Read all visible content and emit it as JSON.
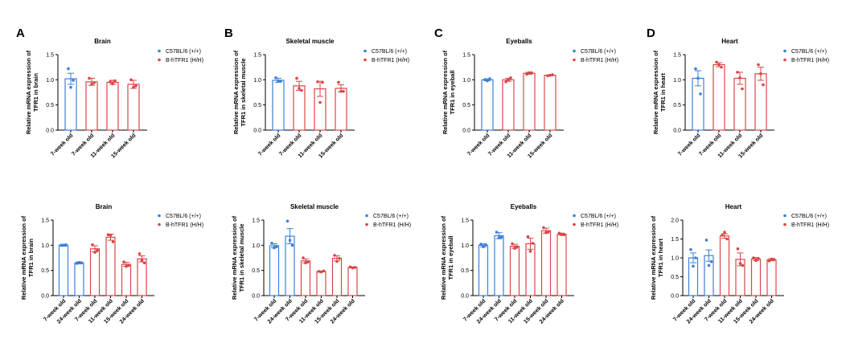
{
  "colors": {
    "wild_type": "#3d7fd9",
    "humanized": "#d94646"
  },
  "legend": [
    "C57BL/6 (+/+)",
    "B-hTFR1 (H/H)"
  ],
  "chart_data": [
    {
      "panel": "A",
      "type": "bar",
      "title": "Brain",
      "ylabel": [
        "Relative mRNA expression of",
        "TFR1 in brain"
      ],
      "ylim": [
        0,
        1.5
      ],
      "yticks": [
        "0.0",
        "0.5",
        "1.0",
        "1.5"
      ],
      "categories": [
        "7-week old",
        "7-week old",
        "11-week old",
        "15-week old"
      ],
      "groups": [
        "wt",
        "h",
        "h",
        "h"
      ],
      "values": [
        1.02,
        0.96,
        0.95,
        0.91
      ],
      "errors": [
        0.11,
        0.07,
        0.04,
        0.08
      ],
      "points": [
        [
          1.22,
          0.85,
          0.99
        ],
        [
          1.03,
          0.91,
          0.94
        ],
        [
          0.96,
          0.92,
          0.98
        ],
        [
          1.0,
          0.85,
          0.88
        ]
      ]
    },
    {
      "panel": "B",
      "type": "bar",
      "title": "Skeletal muscle",
      "ylabel": [
        "Relative mRNA expression of",
        "TFR1 in skeletal muscle"
      ],
      "ylim": [
        0,
        1.5
      ],
      "yticks": [
        "0.0",
        "0.5",
        "1.0",
        "1.5"
      ],
      "categories": [
        "7-week old",
        "7-week old",
        "11-week old",
        "15-week old"
      ],
      "groups": [
        "wt",
        "h",
        "h",
        "h"
      ],
      "values": [
        0.99,
        0.88,
        0.82,
        0.83
      ],
      "errors": [
        0.04,
        0.09,
        0.15,
        0.07
      ],
      "points": [
        [
          1.04,
          0.97,
          0.97
        ],
        [
          1.03,
          0.83,
          0.79
        ],
        [
          0.96,
          0.55,
          0.95
        ],
        [
          0.95,
          0.77,
          0.77
        ]
      ]
    },
    {
      "panel": "C",
      "type": "bar",
      "title": "Eyeballs",
      "ylabel": [
        "Relative mRNA expression of",
        "TFR1 in eyeball"
      ],
      "ylim": [
        0,
        1.5
      ],
      "yticks": [
        "0.0",
        "0.5",
        "1.0",
        "1.5"
      ],
      "categories": [
        "7-week old",
        "7-week old",
        "11-week old",
        "15-week old"
      ],
      "groups": [
        "wt",
        "h",
        "h",
        "h"
      ],
      "values": [
        1.0,
        1.0,
        1.13,
        1.09
      ],
      "errors": [
        0.02,
        0.03,
        0.02,
        0.01
      ],
      "points": [
        [
          1.0,
          0.98,
          1.02
        ],
        [
          0.96,
          1.0,
          1.04
        ],
        [
          1.11,
          1.14,
          1.14
        ],
        [
          1.08,
          1.09,
          1.1
        ]
      ]
    },
    {
      "panel": "D",
      "type": "bar",
      "title": "Heart",
      "ylabel": [
        "Relative mRNA expression of",
        "TFR1 in heart"
      ],
      "ylim": [
        0,
        1.5
      ],
      "yticks": [
        "0.0",
        "0.5",
        "1.0",
        "1.5"
      ],
      "categories": [
        "7-week old",
        "7-week old",
        "11-week old",
        "15-week old"
      ],
      "groups": [
        "wt",
        "h",
        "h",
        "h"
      ],
      "values": [
        1.03,
        1.3,
        1.03,
        1.12
      ],
      "errors": [
        0.15,
        0.04,
        0.12,
        0.13
      ],
      "points": [
        [
          1.22,
          1.03,
          0.72
        ],
        [
          1.35,
          1.3,
          1.25
        ],
        [
          1.15,
          1.04,
          0.82
        ],
        [
          1.3,
          1.12,
          0.9
        ]
      ]
    },
    {
      "panel": "",
      "type": "bar",
      "title": "Brain",
      "ylabel": [
        "Relative mRNA expression of",
        "TFR1 in brain"
      ],
      "ylim": [
        0,
        1.5
      ],
      "yticks": [
        "0.0",
        "0.5",
        "1.0",
        "1.5"
      ],
      "categories": [
        "7-week old",
        "24-week old",
        "7-week old",
        "11-week old",
        "15-week old",
        "24-week old"
      ],
      "groups": [
        "wt",
        "wt",
        "h",
        "h",
        "h",
        "h"
      ],
      "values": [
        1.0,
        0.65,
        0.93,
        1.16,
        0.62,
        0.73
      ],
      "errors": [
        0.02,
        0.02,
        0.06,
        0.06,
        0.04,
        0.06
      ],
      "points": [
        [
          1.0,
          1.0,
          1.01
        ],
        [
          0.64,
          0.66,
          0.65
        ],
        [
          1.01,
          0.86,
          0.9
        ],
        [
          1.21,
          1.2,
          1.07
        ],
        [
          0.67,
          0.58,
          0.6
        ],
        [
          0.83,
          0.7,
          0.65
        ]
      ]
    },
    {
      "panel": "",
      "type": "bar",
      "title": "Skeletal muscle",
      "ylabel": [
        "Relative mRNA expression of",
        "TFR1 in skeletal muscle"
      ],
      "ylim": [
        0,
        1.5
      ],
      "yticks": [
        "0.0",
        "0.5",
        "1.0",
        "1.5"
      ],
      "categories": [
        "7-week old",
        "24-week old",
        "7-week old",
        "11-week old",
        "15-week old",
        "24-week old"
      ],
      "groups": [
        "wt",
        "wt",
        "h",
        "h",
        "h",
        "h"
      ],
      "values": [
        0.99,
        1.18,
        0.69,
        0.48,
        0.74,
        0.56
      ],
      "errors": [
        0.04,
        0.15,
        0.04,
        0.01,
        0.05,
        0.01
      ],
      "points": [
        [
          1.04,
          0.95,
          0.98
        ],
        [
          1.48,
          1.1,
          1.0
        ],
        [
          0.75,
          0.65,
          0.67
        ],
        [
          0.48,
          0.47,
          0.49
        ],
        [
          0.8,
          0.68,
          0.74
        ],
        [
          0.57,
          0.55,
          0.56
        ]
      ]
    },
    {
      "panel": "",
      "type": "bar",
      "title": "Eyeballs",
      "ylabel": [
        "Relative mRNA expression of",
        "TFR1 in eyeball"
      ],
      "ylim": [
        0,
        1.5
      ],
      "yticks": [
        "0.0",
        "0.5",
        "1.0",
        "1.5"
      ],
      "categories": [
        "7-week old",
        "24-week old",
        "7-week old",
        "11-week old",
        "15-week old",
        "24-week old"
      ],
      "groups": [
        "wt",
        "wt",
        "h",
        "h",
        "h",
        "h"
      ],
      "values": [
        1.0,
        1.19,
        0.98,
        1.03,
        1.29,
        1.22
      ],
      "errors": [
        0.03,
        0.06,
        0.04,
        0.11,
        0.05,
        0.02
      ],
      "points": [
        [
          1.02,
          0.97,
          1.01
        ],
        [
          1.26,
          1.15,
          1.16
        ],
        [
          1.03,
          0.94,
          0.97
        ],
        [
          1.17,
          0.88,
          1.04
        ],
        [
          1.35,
          1.25,
          1.27
        ],
        [
          1.24,
          1.21,
          1.21
        ]
      ]
    },
    {
      "panel": "",
      "type": "bar",
      "title": "Heart",
      "ylabel": [
        "Relative mRNA expression of",
        "TFR1 in heart"
      ],
      "ylim": [
        0,
        2.0
      ],
      "yticks": [
        "0.0",
        "0.5",
        "1.0",
        "1.5",
        "2.0"
      ],
      "categories": [
        "7-week old",
        "24-week old",
        "7-week old",
        "11-week old",
        "15-week old",
        "24-week old"
      ],
      "groups": [
        "wt",
        "wt",
        "h",
        "h",
        "h",
        "h"
      ],
      "values": [
        1.0,
        1.06,
        1.58,
        0.96,
        0.97,
        0.95
      ],
      "errors": [
        0.13,
        0.15,
        0.06,
        0.17,
        0.04,
        0.03
      ],
      "points": [
        [
          1.22,
          0.78,
          1.0
        ],
        [
          1.47,
          0.8,
          0.9
        ],
        [
          1.6,
          1.68,
          1.5
        ],
        [
          1.24,
          0.85,
          0.8
        ],
        [
          1.0,
          0.93,
          0.98
        ],
        [
          0.92,
          0.97,
          0.96
        ]
      ]
    }
  ]
}
